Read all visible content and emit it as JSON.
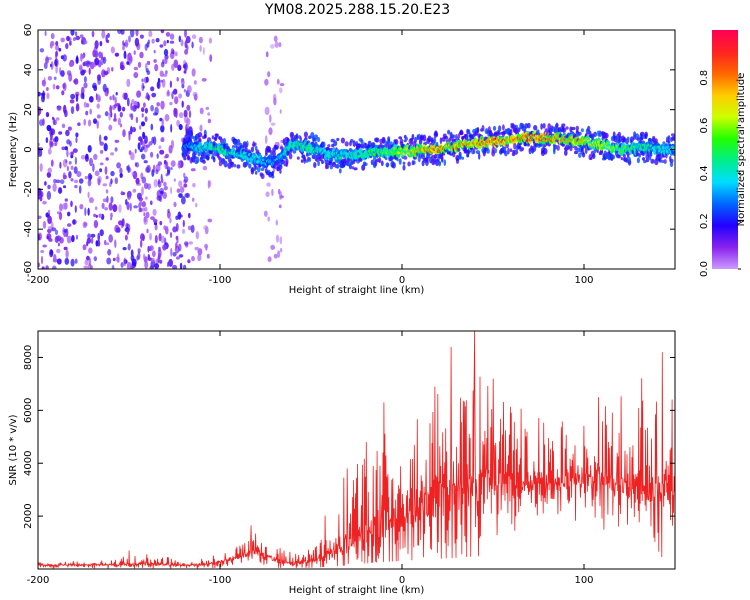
{
  "title": "YM08.2025.288.15.20.E23",
  "colors": {
    "snr_line": "#ee2222",
    "axis": "#000000",
    "colorbar_stops": [
      "#cc99ff",
      "#8822ee",
      "#2200ff",
      "#0066ff",
      "#00ddff",
      "#00ee88",
      "#22ff00",
      "#ccff00",
      "#ffcc00",
      "#ff6600",
      "#ff2222",
      "#ff0055"
    ]
  },
  "chart_data": [
    {
      "type": "heatmap",
      "title": "",
      "xlabel": "Height of straight line (km)",
      "ylabel": "Frequency (Hz)",
      "xlim": [
        -200,
        150
      ],
      "ylim": [
        -60,
        60
      ],
      "x_ticks": [
        -200,
        -100,
        0,
        100
      ],
      "x_tick_labels": [
        "-200",
        "-100",
        "0",
        "100"
      ],
      "y_ticks": [
        -60,
        -40,
        -20,
        0,
        20,
        40,
        60
      ],
      "y_tick_labels": [
        "-60",
        "-40",
        "-20",
        "0",
        "20",
        "40",
        "60"
      ],
      "colorbar": {
        "label": "Normalized spectral amplitude",
        "range": [
          0,
          1
        ],
        "ticks": [
          0,
          0.2,
          0.4,
          0.6,
          0.8
        ],
        "tick_labels": [
          "0.0",
          "0.2",
          "0.4",
          "0.6",
          "0.8"
        ]
      },
      "ridge": {
        "x": [
          -120,
          -110,
          -100,
          -90,
          -80,
          -70,
          -60,
          -50,
          -40,
          -30,
          -20,
          -10,
          0,
          10,
          20,
          30,
          40,
          50,
          60,
          70,
          80,
          90,
          100,
          110,
          120,
          130,
          140,
          150
        ],
        "freq": [
          2,
          1,
          0,
          -2,
          -5,
          -7,
          3,
          1,
          -3,
          -3,
          -2,
          -1,
          -1,
          0,
          0,
          2,
          3,
          4,
          5,
          6,
          6,
          5,
          4,
          2,
          0,
          1,
          0,
          0
        ],
        "peak_amplitude": [
          0.3,
          0.45,
          0.5,
          0.45,
          0.4,
          0.35,
          0.5,
          0.5,
          0.45,
          0.45,
          0.5,
          0.55,
          0.65,
          0.8,
          0.85,
          0.8,
          0.85,
          0.9,
          0.85,
          0.9,
          0.85,
          0.8,
          0.75,
          0.7,
          0.6,
          0.5,
          0.45,
          0.4
        ]
      },
      "noise_regions": [
        {
          "x_range": [
            -200,
            -115
          ],
          "amplitude": 0.15
        },
        {
          "x_range": [
            -115,
            -105
          ],
          "amplitude": 0.05
        },
        {
          "x_range": [
            -75,
            -65
          ],
          "amplitude": 0.04
        }
      ]
    },
    {
      "type": "line",
      "title": "",
      "xlabel": "Height of straight line (km)",
      "ylabel": "SNR (10 * v/v)",
      "xlim": [
        -200,
        150
      ],
      "ylim": [
        0,
        9000
      ],
      "x_ticks": [
        -200,
        -100,
        0,
        100
      ],
      "x_tick_labels": [
        "-200",
        "-100",
        "0",
        "100"
      ],
      "y_ticks": [
        2000,
        4000,
        6000,
        8000
      ],
      "y_tick_labels": [
        "2000",
        "4000",
        "6000",
        "8000"
      ],
      "series": [
        {
          "name": "SNR",
          "x": [
            -200,
            -180,
            -160,
            -140,
            -120,
            -110,
            -100,
            -90,
            -80,
            -70,
            -60,
            -50,
            -40,
            -30,
            -20,
            -10,
            0,
            10,
            20,
            30,
            40,
            50,
            60,
            70,
            80,
            90,
            100,
            110,
            120,
            130,
            140,
            150
          ],
          "baseline": [
            150,
            150,
            160,
            180,
            150,
            160,
            250,
            450,
            700,
            350,
            200,
            280,
            600,
            900,
            1400,
            1800,
            2000,
            2400,
            2600,
            2800,
            3200,
            3300,
            3300,
            3200,
            3200,
            3300,
            3400,
            3300,
            3200,
            3100,
            3000,
            3100
          ],
          "envelope": [
            350,
            350,
            400,
            650,
            350,
            450,
            650,
            1000,
            1650,
            900,
            600,
            900,
            2400,
            3800,
            5100,
            6300,
            6500,
            7000,
            7800,
            8200,
            9000,
            7300,
            6800,
            6500,
            5800,
            6000,
            6000,
            6500,
            6800,
            7000,
            8200,
            8000
          ],
          "peaks": [
            [
              -150,
              700
            ],
            [
              -83,
              1650
            ],
            [
              -30,
              3800
            ],
            [
              -10,
              6300
            ],
            [
              18,
              6900
            ],
            [
              27,
              8400
            ],
            [
              40,
              9000
            ],
            [
              50,
              7200
            ],
            [
              108,
              6500
            ],
            [
              143,
              8200
            ]
          ]
        }
      ]
    }
  ]
}
